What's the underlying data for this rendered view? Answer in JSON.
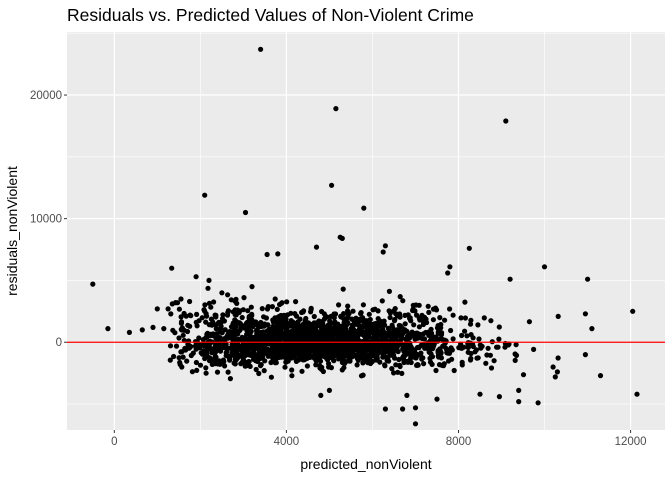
{
  "chart_data": {
    "type": "scatter",
    "title": "Residuals vs. Predicted Values of Non-Violent Crime",
    "xlabel": "predicted_nonViolent",
    "ylabel": "residuals_nonViolent",
    "xlim": [
      -1100,
      12800
    ],
    "ylim": [
      -7100,
      25100
    ],
    "x_ticks": [
      0,
      4000,
      8000,
      12000
    ],
    "x_tick_labels": [
      "0",
      "4000",
      "8000",
      "12000"
    ],
    "y_ticks": [
      0,
      10000,
      20000
    ],
    "y_tick_labels": [
      "0",
      "10000",
      "20000"
    ],
    "grid": true,
    "reference_line": {
      "y": 0,
      "color": "#ff0000"
    },
    "colors": {
      "panel_background": "#ebebeb",
      "grid": "#ffffff",
      "points": "#000000"
    },
    "points": {
      "outliers": [
        [
          -500,
          4700
        ],
        [
          -150,
          1100
        ],
        [
          3400,
          23700
        ],
        [
          5150,
          18900
        ],
        [
          9100,
          17900
        ],
        [
          2100,
          11900
        ],
        [
          3050,
          10500
        ],
        [
          5050,
          12700
        ],
        [
          5800,
          10850
        ],
        [
          5250,
          8500
        ],
        [
          5300,
          8400
        ],
        [
          3550,
          7100
        ],
        [
          3800,
          7150
        ],
        [
          4700,
          7700
        ],
        [
          6300,
          7800
        ],
        [
          6250,
          7300
        ],
        [
          8250,
          7600
        ],
        [
          10000,
          6100
        ],
        [
          11000,
          5100
        ],
        [
          12050,
          2500
        ],
        [
          12150,
          -4200
        ],
        [
          11300,
          -2700
        ],
        [
          6700,
          -5400
        ],
        [
          7000,
          -6600
        ],
        [
          7000,
          -5300
        ],
        [
          6300,
          -5400
        ],
        [
          9850,
          -4900
        ],
        [
          9400,
          -4800
        ],
        [
          8950,
          -4400
        ],
        [
          350,
          800
        ],
        [
          650,
          1000
        ],
        [
          900,
          1200
        ],
        [
          1000,
          2700
        ],
        [
          1250,
          2700
        ],
        [
          1150,
          1100
        ],
        [
          1550,
          3500
        ],
        [
          1900,
          5300
        ],
        [
          2200,
          5000
        ],
        [
          1750,
          3300
        ],
        [
          2500,
          4000
        ],
        [
          3200,
          4500
        ],
        [
          7800,
          6100
        ],
        [
          7750,
          5600
        ],
        [
          9200,
          5100
        ],
        [
          10950,
          2300
        ],
        [
          11100,
          1100
        ],
        [
          10950,
          -1000
        ],
        [
          10200,
          -2000
        ],
        [
          10250,
          -2800
        ],
        [
          10300,
          -2400
        ],
        [
          8500,
          -4200
        ],
        [
          7500,
          -4600
        ],
        [
          6800,
          -4300
        ],
        [
          9400,
          -3900
        ],
        [
          5000,
          -3900
        ],
        [
          4800,
          -4300
        ]
      ],
      "cloud": {
        "count": 2100,
        "seed": 1234567,
        "x_center": 4700,
        "x_spread": 1700,
        "x_min": 1300,
        "x_max": 10600,
        "y_center": -100,
        "y_negative_spread": 900,
        "y_positive_spread": 1400,
        "y_min": -3600,
        "y_max": 6000
      }
    }
  }
}
